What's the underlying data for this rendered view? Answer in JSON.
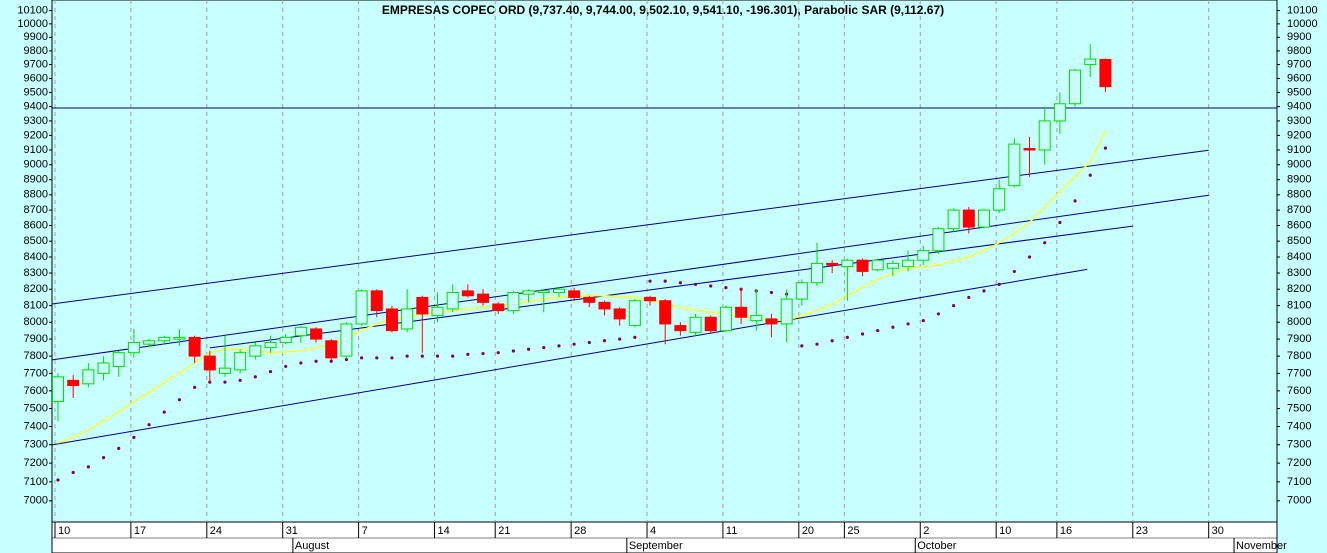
{
  "chart_data": {
    "type": "candlestick",
    "title": "EMPRESAS COPEC ORD (9,737.40, 9,744.00, 9,502.10, 9,541.10, -196.301), Parabolic SAR (9,112.67)",
    "log_y": true,
    "grid": true,
    "categories": [
      "10",
      null,
      null,
      null,
      null,
      "17",
      null,
      null,
      null,
      null,
      "24",
      null,
      null,
      null,
      null,
      "31",
      null,
      null,
      null,
      null,
      "7",
      null,
      null,
      null,
      null,
      "14",
      null,
      null,
      null,
      "21",
      null,
      null,
      null,
      null,
      "28",
      null,
      null,
      null,
      null,
      "4",
      null,
      null,
      null,
      null,
      "11",
      null,
      null,
      null,
      null,
      "20",
      null,
      null,
      "25",
      null,
      null,
      null,
      null,
      "2",
      null,
      null,
      null,
      null,
      "10",
      null,
      null,
      null,
      "16",
      null,
      null,
      null,
      null,
      "23",
      null,
      null,
      null,
      null,
      "30",
      null,
      null,
      null,
      null
    ],
    "months": [
      null,
      null,
      null,
      null,
      null,
      null,
      null,
      null,
      null,
      null,
      null,
      null,
      null,
      null,
      null,
      null,
      "August",
      null,
      null,
      null,
      null,
      null,
      null,
      null,
      null,
      null,
      null,
      null,
      null,
      null,
      null,
      null,
      null,
      null,
      null,
      null,
      null,
      null,
      "September",
      null,
      null,
      null,
      null,
      null,
      null,
      null,
      null,
      null,
      null,
      null,
      null,
      null,
      null,
      null,
      null,
      null,
      null,
      "October",
      null,
      null,
      null,
      null,
      null,
      null,
      null,
      null,
      null,
      null,
      null,
      null,
      null,
      null,
      null,
      null,
      null,
      null,
      null,
      null,
      "November",
      null,
      null
    ],
    "open": [
      7540,
      7660,
      7640,
      7700,
      7740,
      7820,
      7870,
      7890,
      7900,
      7910,
      7800,
      7700,
      7720,
      7800,
      7850,
      7880,
      7920,
      7960,
      7890,
      7800,
      7990,
      8190,
      8080,
      7960,
      8150,
      8040,
      8080,
      8190,
      8170,
      8110,
      8070,
      8170,
      8180,
      8180,
      8190,
      8150,
      8120,
      8080,
      7980,
      8150,
      8130,
      7980,
      7940,
      8030,
      7950,
      8090,
      8010,
      8020,
      7990,
      8140,
      8240,
      8360,
      8340,
      8380,
      8320,
      8330,
      8340,
      8380,
      8440,
      8580,
      8700,
      8590,
      8700,
      8860,
      9110,
      9100,
      9300,
      9420,
      9700,
      9737.4,
      null,
      null,
      null,
      null,
      null,
      null,
      null,
      null,
      null,
      null,
      null
    ],
    "high": [
      7700,
      7690,
      7760,
      7800,
      7830,
      7960,
      7900,
      7920,
      7960,
      7920,
      7830,
      7920,
      7840,
      7880,
      7920,
      7930,
      7980,
      7970,
      7900,
      8000,
      8200,
      8200,
      8100,
      8200,
      8160,
      8180,
      8230,
      8230,
      8200,
      8120,
      8190,
      8200,
      8200,
      8210,
      8210,
      8160,
      8130,
      8090,
      8140,
      8160,
      8140,
      8000,
      8050,
      8040,
      8100,
      8210,
      8200,
      8050,
      8200,
      8260,
      8490,
      8380,
      8390,
      8390,
      8390,
      8380,
      8440,
      8470,
      8590,
      8710,
      8720,
      8710,
      8900,
      9180,
      9190,
      9400,
      9500,
      9670,
      9850,
      9744,
      null,
      null,
      null,
      null,
      null,
      null,
      null,
      null,
      null,
      null,
      null
    ],
    "low": [
      7430,
      7560,
      7620,
      7660,
      7680,
      7790,
      7850,
      7870,
      7860,
      7760,
      7640,
      7680,
      7700,
      7780,
      7820,
      7870,
      7880,
      7880,
      7780,
      7790,
      7980,
      8030,
      7940,
      7940,
      7820,
      8000,
      8060,
      8150,
      8100,
      8050,
      8050,
      8120,
      8060,
      8150,
      8130,
      8090,
      8040,
      7980,
      7970,
      8100,
      7870,
      7920,
      7920,
      7930,
      7940,
      7990,
      7950,
      7910,
      7880,
      8100,
      8220,
      8300,
      8130,
      8280,
      8310,
      8280,
      8310,
      8350,
      8420,
      8560,
      8550,
      8580,
      8680,
      8850,
      8920,
      9000,
      9210,
      9400,
      9610,
      9502.1,
      null,
      null,
      null,
      null,
      null,
      null,
      null,
      null,
      null,
      null,
      null
    ],
    "close": [
      7680,
      7630,
      7720,
      7760,
      7820,
      7880,
      7890,
      7910,
      7910,
      7800,
      7720,
      7730,
      7820,
      7860,
      7880,
      7910,
      7970,
      7900,
      7790,
      7990,
      8190,
      8070,
      7950,
      8080,
      8050,
      8090,
      8180,
      8160,
      8120,
      8070,
      8180,
      8190,
      8190,
      8200,
      8150,
      8120,
      8080,
      8020,
      8130,
      8130,
      7990,
      7950,
      8030,
      7950,
      8090,
      8030,
      8040,
      7990,
      8140,
      8240,
      8360,
      8350,
      8380,
      8310,
      8380,
      8360,
      8380,
      8440,
      8580,
      8700,
      8590,
      8700,
      8840,
      9140,
      9100,
      9300,
      9420,
      9660,
      9740,
      9541.1,
      null,
      null,
      null,
      null,
      null,
      null,
      null,
      null,
      null,
      null,
      null
    ],
    "up_color": "#00dd00",
    "down_color": "#ff0000",
    "moving_average": {
      "color": "#ffff33",
      "values": [
        7310,
        7340,
        7380,
        7430,
        7480,
        7540,
        7590,
        7650,
        7700,
        7760,
        7820,
        7840,
        7840,
        7830,
        7820,
        7825,
        7830,
        7850,
        7870,
        7910,
        7950,
        7990,
        8020,
        8030,
        8050,
        8060,
        8070,
        8080,
        8090,
        8100,
        8110,
        8125,
        8140,
        8150,
        8155,
        8160,
        8160,
        8155,
        8150,
        8130,
        8110,
        8090,
        8070,
        8060,
        8050,
        8035,
        8020,
        8015,
        8010,
        8040,
        8070,
        8110,
        8160,
        8210,
        8260,
        8300,
        8330,
        8340,
        8350,
        8375,
        8400,
        8440,
        8490,
        8550,
        8620,
        8720,
        8820,
        8920,
        9020,
        9230,
        null,
        null,
        null,
        null,
        null,
        null,
        null,
        null,
        null,
        null,
        null
      ]
    },
    "parabolic_sar": {
      "color": "#800060",
      "values": [
        7110,
        7150,
        7180,
        7230,
        7280,
        7340,
        7410,
        7480,
        7550,
        7620,
        7650,
        7650,
        7660,
        7680,
        7710,
        7740,
        7760,
        7770,
        7770,
        7780,
        7790,
        7790,
        7790,
        7800,
        7800,
        7800,
        7800,
        7810,
        7815,
        7820,
        7830,
        7840,
        7850,
        7860,
        7870,
        7880,
        7890,
        7900,
        7910,
        8250,
        8250,
        8240,
        8230,
        8220,
        8210,
        8200,
        8190,
        8180,
        8170,
        7860,
        7870,
        7890,
        7910,
        7930,
        7950,
        7970,
        7990,
        8010,
        8050,
        8100,
        8150,
        8190,
        8230,
        8310,
        8400,
        8490,
        8620,
        8760,
        8930,
        9112.67,
        null,
        null,
        null,
        null,
        null,
        null,
        null,
        null,
        null,
        null,
        null
      ]
    },
    "channel_lines": {
      "color": "#000080",
      "lines": [
        {
          "start": [
            -0.4,
            8110
          ],
          "end": [
            75.8,
            9098
          ]
        },
        {
          "start": [
            -0.4,
            7778
          ],
          "end": [
            75.8,
            8797
          ]
        },
        {
          "start": [
            10,
            7848
          ],
          "end": [
            70.8,
            8596
          ]
        },
        {
          "start": [
            -0.4,
            7299
          ],
          "end": [
            67.8,
            8323
          ]
        }
      ]
    },
    "hline": {
      "color": "#000080",
      "value": 9390
    },
    "ylim": [
      6890,
      10180
    ],
    "yticks": [
      7000,
      7100,
      7200,
      7300,
      7400,
      7500,
      7600,
      7700,
      7800,
      7900,
      8000,
      8100,
      8200,
      8300,
      8400,
      8500,
      8600,
      8700,
      8800,
      8900,
      9000,
      9100,
      9200,
      9300,
      9400,
      9500,
      9600,
      9700,
      9800,
      9900,
      10000,
      10100
    ]
  }
}
